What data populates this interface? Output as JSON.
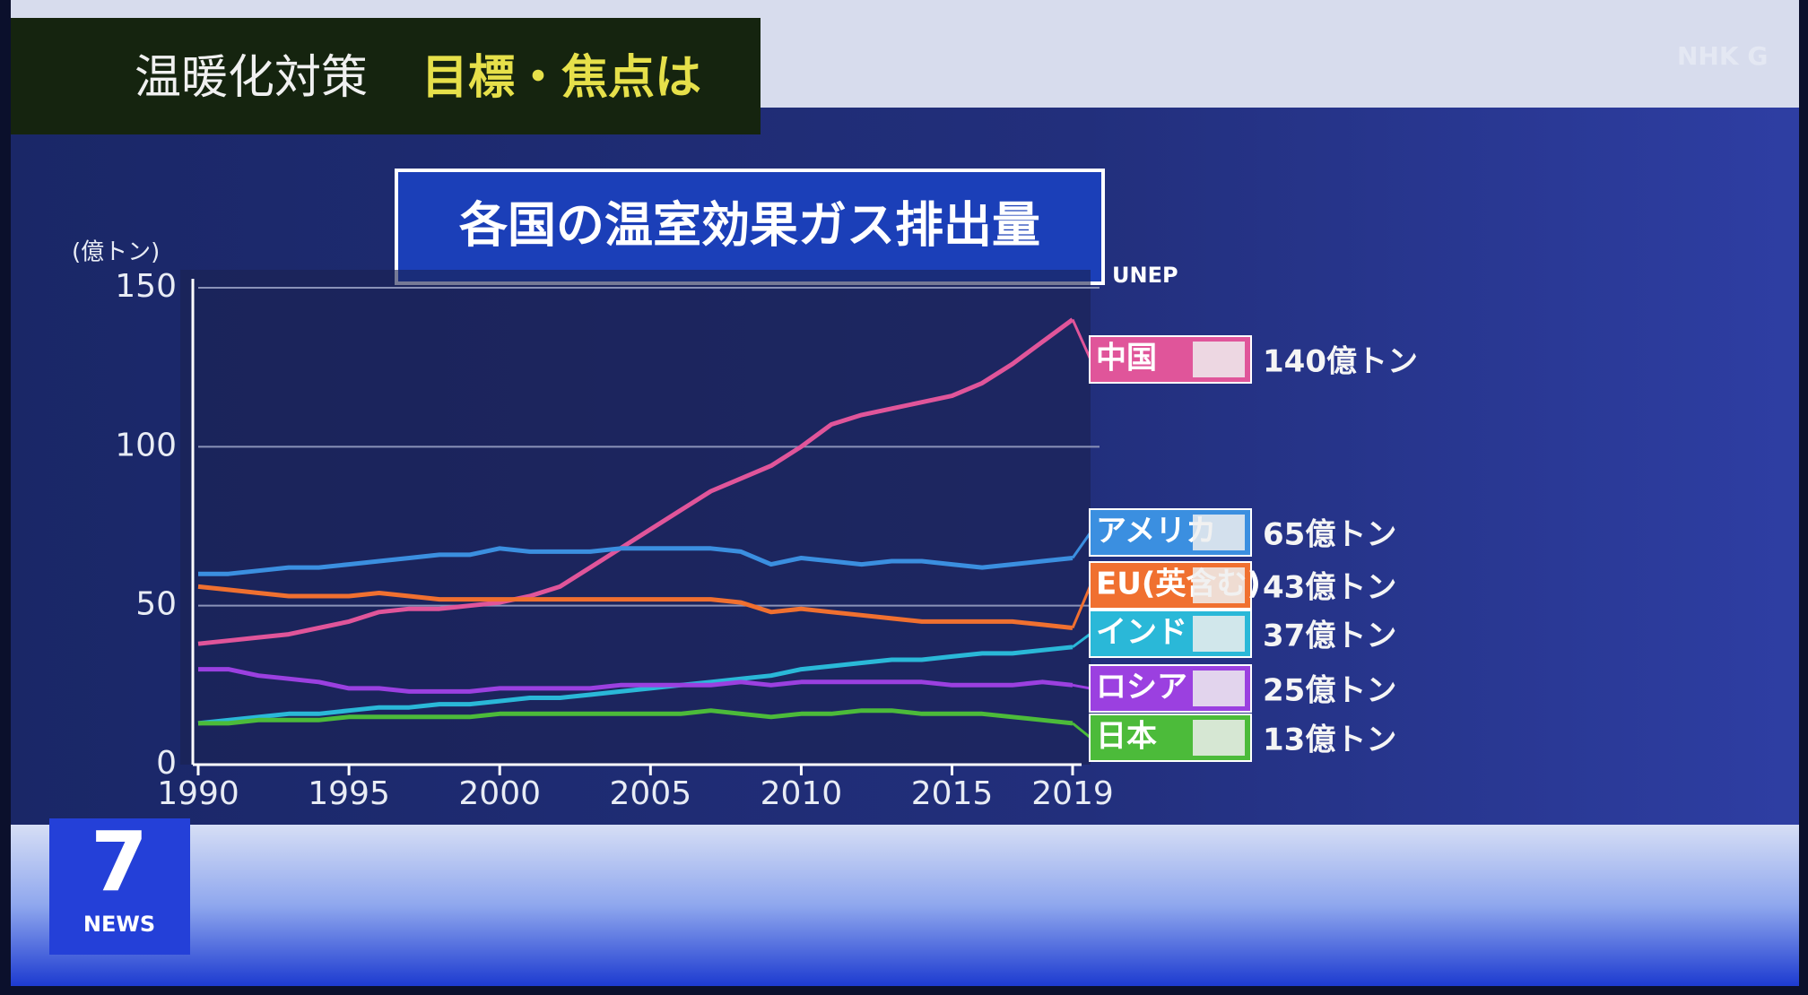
{
  "header": {
    "title": "温暖化対策",
    "highlight": "目標・焦点は",
    "watermark": "NHK G"
  },
  "logo": {
    "number": "7",
    "text": "NEWS"
  },
  "chart_data": {
    "type": "line",
    "title": "各国の温室効果ガス排出量",
    "source": "UNEP",
    "y_label": "(億トン)",
    "x": [
      1990,
      1991,
      1992,
      1993,
      1994,
      1995,
      1996,
      1997,
      1998,
      1999,
      2000,
      2001,
      2002,
      2003,
      2004,
      2005,
      2006,
      2007,
      2008,
      2009,
      2010,
      2011,
      2012,
      2013,
      2014,
      2015,
      2016,
      2017,
      2018,
      2019
    ],
    "xlim": [
      1990,
      2019
    ],
    "xticks": [
      1990,
      1995,
      2000,
      2005,
      2010,
      2015,
      2019
    ],
    "ylim": [
      0,
      150
    ],
    "yticks": [
      0,
      50,
      100,
      150
    ],
    "grid": true,
    "series": [
      {
        "name": "中国",
        "color": "#e0559a",
        "values": [
          38,
          39,
          40,
          41,
          43,
          45,
          48,
          49,
          49,
          50,
          51,
          53,
          56,
          62,
          68,
          74,
          80,
          86,
          90,
          94,
          100,
          107,
          110,
          112,
          114,
          116,
          120,
          126,
          133,
          140
        ],
        "value_labels": [
          null,
          null,
          null,
          null,
          null,
          null,
          null,
          null,
          null,
          null,
          null,
          null,
          null,
          null,
          null,
          null,
          null,
          null,
          null,
          null,
          null,
          null,
          null,
          null,
          null,
          null,
          null,
          null,
          null,
          "140億トン"
        ]
      },
      {
        "name": "アメリカ",
        "color": "#3b8fe0",
        "values": [
          60,
          60,
          61,
          62,
          62,
          63,
          64,
          65,
          66,
          66,
          68,
          67,
          67,
          67,
          68,
          68,
          68,
          68,
          67,
          63,
          65,
          64,
          63,
          64,
          64,
          63,
          62,
          63,
          64,
          65
        ],
        "value_labels": [
          null,
          null,
          null,
          null,
          null,
          null,
          null,
          null,
          null,
          null,
          null,
          null,
          null,
          null,
          null,
          null,
          null,
          null,
          null,
          null,
          null,
          null,
          null,
          null,
          null,
          null,
          null,
          null,
          null,
          "65億トン"
        ]
      },
      {
        "name": "EU(英含む)",
        "color": "#f07030",
        "values": [
          56,
          55,
          54,
          53,
          53,
          53,
          54,
          53,
          52,
          52,
          52,
          52,
          52,
          52,
          52,
          52,
          52,
          52,
          51,
          48,
          49,
          48,
          47,
          46,
          45,
          45,
          45,
          45,
          44,
          43
        ],
        "value_labels": [
          null,
          null,
          null,
          null,
          null,
          null,
          null,
          null,
          null,
          null,
          null,
          null,
          null,
          null,
          null,
          null,
          null,
          null,
          null,
          null,
          null,
          null,
          null,
          null,
          null,
          null,
          null,
          null,
          null,
          "43億トン"
        ]
      },
      {
        "name": "インド",
        "color": "#2ab8d8",
        "values": [
          13,
          14,
          15,
          16,
          16,
          17,
          18,
          18,
          19,
          19,
          20,
          21,
          21,
          22,
          23,
          24,
          25,
          26,
          27,
          28,
          30,
          31,
          32,
          33,
          33,
          34,
          35,
          35,
          36,
          37
        ],
        "value_labels": [
          null,
          null,
          null,
          null,
          null,
          null,
          null,
          null,
          null,
          null,
          null,
          null,
          null,
          null,
          null,
          null,
          null,
          null,
          null,
          null,
          null,
          null,
          null,
          null,
          null,
          null,
          null,
          null,
          null,
          "37億トン"
        ]
      },
      {
        "name": "ロシア",
        "color": "#9b40e0",
        "values": [
          30,
          30,
          28,
          27,
          26,
          24,
          24,
          23,
          23,
          23,
          24,
          24,
          24,
          24,
          25,
          25,
          25,
          25,
          26,
          25,
          26,
          26,
          26,
          26,
          26,
          25,
          25,
          25,
          26,
          25
        ],
        "value_labels": [
          null,
          null,
          null,
          null,
          null,
          null,
          null,
          null,
          null,
          null,
          null,
          null,
          null,
          null,
          null,
          null,
          null,
          null,
          null,
          null,
          null,
          null,
          null,
          null,
          null,
          null,
          null,
          null,
          null,
          "25億トン"
        ]
      },
      {
        "name": "日本",
        "color": "#4cbb3a",
        "values": [
          13,
          13,
          14,
          14,
          14,
          15,
          15,
          15,
          15,
          15,
          16,
          16,
          16,
          16,
          16,
          16,
          16,
          17,
          16,
          15,
          16,
          16,
          17,
          17,
          16,
          16,
          16,
          15,
          14,
          13
        ],
        "value_labels": [
          null,
          null,
          null,
          null,
          null,
          null,
          null,
          null,
          null,
          null,
          null,
          null,
          null,
          null,
          null,
          null,
          null,
          null,
          null,
          null,
          null,
          null,
          null,
          null,
          null,
          null,
          null,
          null,
          null,
          "13億トン"
        ]
      }
    ]
  }
}
